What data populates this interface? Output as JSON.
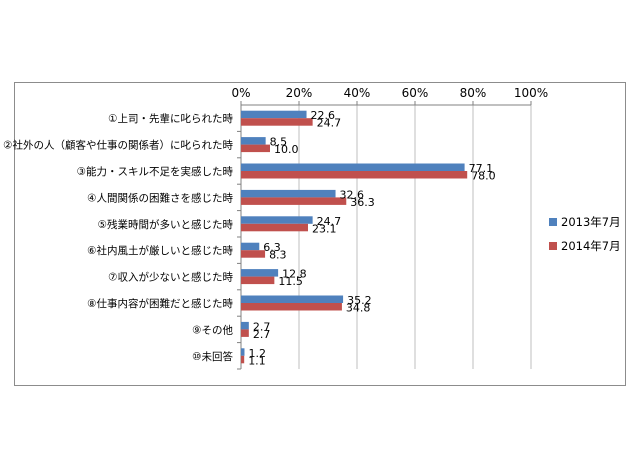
{
  "chart_data": {
    "type": "bar",
    "orientation": "horizontal",
    "categories": [
      "①上司・先輩に叱られた時",
      "②社外の人（顧客や仕事の関係者）に叱られた時",
      "③能力・スキル不足を実感した時",
      "④人間関係の困難さを感じた時",
      "⑤残業時間が多いと感じた時",
      "⑥社内風土が厳しいと感じた時",
      "⑦収入が少ないと感じた時",
      "⑧仕事内容が困難だと感じた時",
      "⑨その他",
      "⑩未回答"
    ],
    "series": [
      {
        "name": "2013年7月",
        "color": "#4f81bd",
        "values": [
          22.6,
          8.5,
          77.1,
          32.6,
          24.7,
          6.3,
          12.8,
          35.2,
          2.7,
          1.2
        ]
      },
      {
        "name": "2014年7月",
        "color": "#c0504d",
        "values": [
          24.7,
          10.0,
          78.0,
          36.3,
          23.1,
          8.3,
          11.5,
          34.8,
          2.7,
          1.1
        ]
      }
    ],
    "xlim": [
      0,
      100
    ],
    "ticks": [
      "0%",
      "20%",
      "40%",
      "60%",
      "80%",
      "100%"
    ],
    "tick_values": [
      0,
      20,
      40,
      60,
      80,
      100
    ],
    "axis_position": "top",
    "grid": true,
    "legend_position": "right"
  }
}
